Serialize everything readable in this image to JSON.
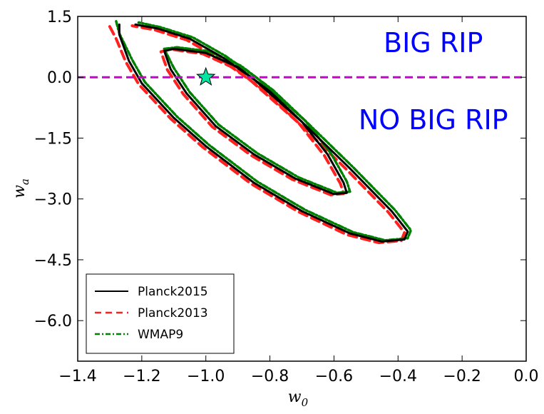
{
  "chart_data": {
    "type": "line",
    "title": "",
    "xlabel": "w",
    "xlabel_sub": "0",
    "ylabel": "w",
    "ylabel_sub": "a",
    "xlim": [
      -1.4,
      0.0
    ],
    "ylim": [
      -7.0,
      1.5
    ],
    "xticks": [
      -1.4,
      -1.2,
      -1.0,
      -0.8,
      -0.6,
      -0.4,
      -0.2,
      0.0
    ],
    "xtick_labels": [
      "−1.4",
      "−1.2",
      "−1.0",
      "−0.8",
      "−0.6",
      "−0.4",
      "−0.2",
      "0.0"
    ],
    "yticks": [
      1.5,
      0.0,
      -1.5,
      -3.0,
      -4.5,
      -6.0
    ],
    "ytick_labels": [
      "1.5",
      "0.0",
      "−1.5",
      "−3.0",
      "−4.5",
      "−6.0"
    ],
    "grid": false,
    "legend_position": "bottom-left",
    "annotations": [
      {
        "text": "BIG RIP",
        "x": -0.29,
        "y": 0.62,
        "color": "#0000ff"
      },
      {
        "text": "NO BIG RIP",
        "x": -0.29,
        "y": -1.28,
        "color": "#0000ff"
      }
    ],
    "reference_line": {
      "y": 0.0,
      "color": "#cc00cc",
      "style": "dashed"
    },
    "marker": {
      "type": "star",
      "x": -1.0,
      "y": 0.0,
      "color": "#00e6a0"
    },
    "series": [
      {
        "name": "Planck2015",
        "color": "#000000",
        "style": "solid",
        "contours": [
          [
            [
              -1.13,
              0.65
            ],
            [
              -1.1,
              0.7
            ],
            [
              -1.0,
              0.6
            ],
            [
              -0.9,
              0.25
            ],
            [
              -0.8,
              -0.35
            ],
            [
              -0.7,
              -1.1
            ],
            [
              -0.62,
              -1.9
            ],
            [
              -0.57,
              -2.6
            ],
            [
              -0.56,
              -2.85
            ],
            [
              -0.6,
              -2.88
            ],
            [
              -0.72,
              -2.5
            ],
            [
              -0.85,
              -1.9
            ],
            [
              -0.97,
              -1.2
            ],
            [
              -1.06,
              -0.4
            ],
            [
              -1.11,
              0.2
            ],
            [
              -1.13,
              0.65
            ]
          ],
          [
            [
              -1.27,
              1.3
            ],
            [
              -1.27,
              1.05
            ],
            [
              -1.24,
              0.4
            ],
            [
              -1.2,
              -0.15
            ],
            [
              -1.1,
              -1.0
            ],
            [
              -1.0,
              -1.7
            ],
            [
              -0.85,
              -2.6
            ],
            [
              -0.7,
              -3.3
            ],
            [
              -0.55,
              -3.85
            ],
            [
              -0.45,
              -4.05
            ],
            [
              -0.38,
              -4.0
            ],
            [
              -0.37,
              -3.8
            ],
            [
              -0.42,
              -3.3
            ],
            [
              -0.55,
              -2.25
            ],
            [
              -0.7,
              -1.1
            ],
            [
              -0.85,
              -0.05
            ],
            [
              -0.95,
              0.5
            ],
            [
              -1.05,
              0.95
            ],
            [
              -1.15,
              1.2
            ],
            [
              -1.22,
              1.3
            ]
          ]
        ]
      },
      {
        "name": "Planck2013",
        "color": "#ff2020",
        "style": "dashed",
        "contours": [
          [
            [
              -1.14,
              0.63
            ],
            [
              -1.11,
              0.69
            ],
            [
              -1.01,
              0.58
            ],
            [
              -0.91,
              0.22
            ],
            [
              -0.81,
              -0.38
            ],
            [
              -0.71,
              -1.13
            ],
            [
              -0.63,
              -1.93
            ],
            [
              -0.58,
              -2.62
            ],
            [
              -0.57,
              -2.87
            ],
            [
              -0.61,
              -2.9
            ],
            [
              -0.73,
              -2.52
            ],
            [
              -0.86,
              -1.92
            ],
            [
              -0.98,
              -1.22
            ],
            [
              -1.07,
              -0.42
            ],
            [
              -1.12,
              0.18
            ],
            [
              -1.14,
              0.63
            ]
          ],
          [
            [
              -1.3,
              1.25
            ],
            [
              -1.28,
              0.95
            ],
            [
              -1.25,
              0.38
            ],
            [
              -1.21,
              -0.17
            ],
            [
              -1.11,
              -1.02
            ],
            [
              -1.01,
              -1.72
            ],
            [
              -0.86,
              -2.62
            ],
            [
              -0.71,
              -3.32
            ],
            [
              -0.56,
              -3.88
            ],
            [
              -0.46,
              -4.08
            ],
            [
              -0.39,
              -4.03
            ],
            [
              -0.38,
              -3.83
            ],
            [
              -0.43,
              -3.33
            ],
            [
              -0.56,
              -2.28
            ],
            [
              -0.71,
              -1.13
            ],
            [
              -0.86,
              -0.08
            ],
            [
              -0.96,
              0.47
            ],
            [
              -1.06,
              0.92
            ],
            [
              -1.16,
              1.17
            ],
            [
              -1.23,
              1.27
            ]
          ]
        ]
      },
      {
        "name": "WMAP9",
        "color": "#008000",
        "style": "dashdot",
        "contours": [
          [
            [
              -1.13,
              0.7
            ],
            [
              -1.09,
              0.74
            ],
            [
              -0.99,
              0.64
            ],
            [
              -0.89,
              0.28
            ],
            [
              -0.79,
              -0.32
            ],
            [
              -0.69,
              -1.07
            ],
            [
              -0.61,
              -1.87
            ],
            [
              -0.56,
              -2.57
            ],
            [
              -0.55,
              -2.82
            ],
            [
              -0.59,
              -2.85
            ],
            [
              -0.71,
              -2.47
            ],
            [
              -0.84,
              -1.87
            ],
            [
              -0.96,
              -1.17
            ],
            [
              -1.05,
              -0.37
            ],
            [
              -1.1,
              0.23
            ],
            [
              -1.13,
              0.7
            ]
          ],
          [
            [
              -1.28,
              1.38
            ],
            [
              -1.27,
              1.08
            ],
            [
              -1.23,
              0.43
            ],
            [
              -1.19,
              -0.12
            ],
            [
              -1.09,
              -0.97
            ],
            [
              -0.99,
              -1.67
            ],
            [
              -0.84,
              -2.57
            ],
            [
              -0.69,
              -3.27
            ],
            [
              -0.54,
              -3.82
            ],
            [
              -0.44,
              -4.02
            ],
            [
              -0.37,
              -3.97
            ],
            [
              -0.36,
              -3.77
            ],
            [
              -0.41,
              -3.27
            ],
            [
              -0.54,
              -2.22
            ],
            [
              -0.69,
              -1.07
            ],
            [
              -0.84,
              -0.02
            ],
            [
              -0.94,
              0.53
            ],
            [
              -1.04,
              0.98
            ],
            [
              -1.14,
              1.23
            ],
            [
              -1.21,
              1.35
            ]
          ]
        ]
      }
    ]
  }
}
